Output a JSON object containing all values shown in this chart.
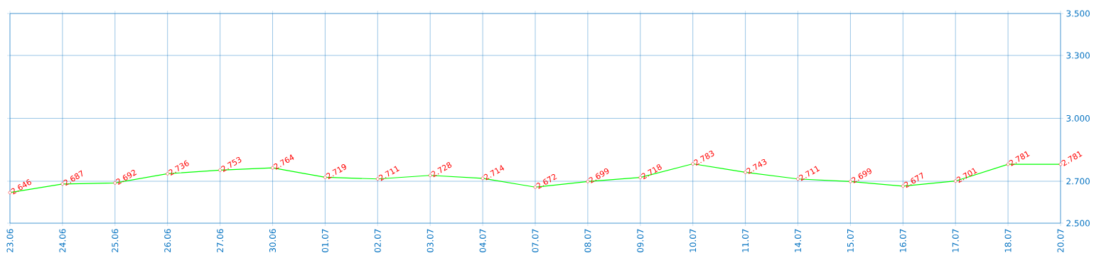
{
  "chart_data": {
    "type": "line",
    "categories": [
      "23.06",
      "24.06",
      "25.06",
      "26.06",
      "27.06",
      "30.06",
      "01.07",
      "02.07",
      "03.07",
      "04.07",
      "07.07",
      "08.07",
      "09.07",
      "10.07",
      "11.07",
      "14.07",
      "15.07",
      "16.07",
      "17.07",
      "18.07",
      "20.07"
    ],
    "series": [
      {
        "color": "#00ff00",
        "values": [
          2.646,
          2.687,
          2.692,
          2.736,
          2.753,
          2.764,
          2.719,
          2.711,
          2.728,
          2.714,
          2.672,
          2.699,
          2.718,
          2.783,
          2.743,
          2.711,
          2.699,
          2.677,
          2.701,
          2.781,
          2.781
        ]
      }
    ],
    "ylim": [
      2.5,
      3.5
    ],
    "yticks": [
      {
        "value": 2.5,
        "label": "2.500"
      },
      {
        "value": 2.7,
        "label": "2.700"
      },
      {
        "value": 3.0,
        "label": "3.000"
      },
      {
        "value": 3.3,
        "label": "3.300"
      },
      {
        "value": 3.5,
        "label": "3.500"
      }
    ],
    "grid": true,
    "marker": "circle",
    "line_style": "solid",
    "data_labels": true
  }
}
